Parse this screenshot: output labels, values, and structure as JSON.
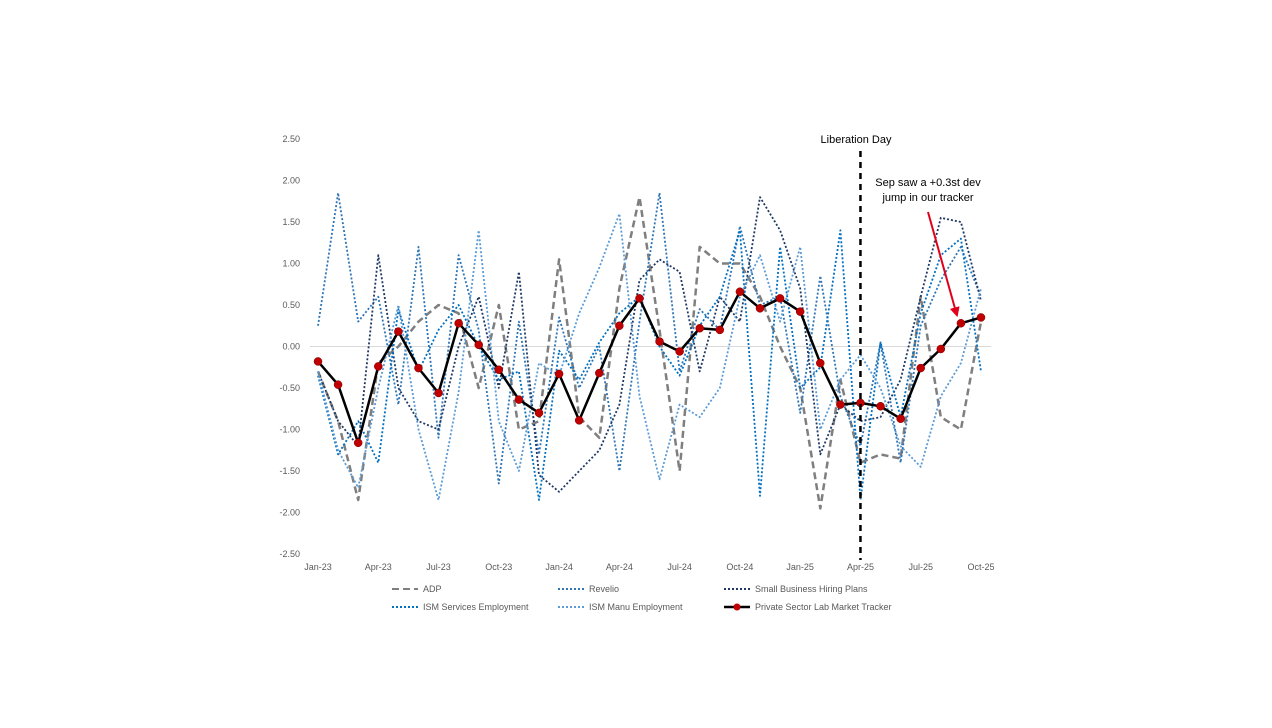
{
  "chart_data": {
    "type": "line",
    "title": "",
    "xlabel": "",
    "ylabel": "",
    "ylim": [
      -2.5,
      2.5
    ],
    "yticks": [
      2.5,
      2.0,
      1.5,
      1.0,
      0.5,
      0.0,
      -0.5,
      -1.0,
      -1.5,
      -2.0,
      -2.5
    ],
    "ytick_labels": [
      "2.50",
      "2.00",
      "1.50",
      "1.00",
      "0.50",
      "0.00",
      "-0.50",
      "-1.00",
      "-1.50",
      "-2.00",
      "-2.50"
    ],
    "x": [
      "Jan-23",
      "Feb-23",
      "Mar-23",
      "Apr-23",
      "May-23",
      "Jun-23",
      "Jul-23",
      "Aug-23",
      "Sep-23",
      "Oct-23",
      "Nov-23",
      "Dec-23",
      "Jan-24",
      "Feb-24",
      "Mar-24",
      "Apr-24",
      "May-24",
      "Jun-24",
      "Jul-24",
      "Aug-24",
      "Sep-24",
      "Oct-24",
      "Nov-24",
      "Dec-24",
      "Jan-25",
      "Feb-25",
      "Mar-25",
      "Apr-25",
      "May-25",
      "Jun-25",
      "Jul-25",
      "Aug-25",
      "Sep-25",
      "Oct-25"
    ],
    "xtick_labels": [
      "Jan-23",
      "Apr-23",
      "Jul-23",
      "Oct-23",
      "Jan-24",
      "Apr-24",
      "Jul-24",
      "Oct-24",
      "Jan-25",
      "Apr-25",
      "Jul-25",
      "Oct-25"
    ],
    "xtick_indices": [
      0,
      3,
      6,
      9,
      12,
      15,
      18,
      21,
      24,
      27,
      30,
      33
    ],
    "series": [
      {
        "name": "ADP",
        "color": "#7f7f7f",
        "style": "dashed",
        "values": [
          -0.3,
          -0.9,
          -1.85,
          -0.2,
          0.0,
          0.3,
          0.5,
          0.4,
          -0.5,
          0.5,
          -1.0,
          -0.9,
          1.05,
          -0.85,
          -1.1,
          0.7,
          1.8,
          0.2,
          -1.5,
          1.2,
          1.0,
          1.0,
          0.6,
          0.0,
          -0.5,
          -1.95,
          -0.4,
          -1.4,
          -1.3,
          -1.35,
          0.6,
          -0.85,
          -1.0,
          0.3
        ]
      },
      {
        "name": "Revelio",
        "color": "#2e75b6",
        "style": "dotted",
        "values": [
          0.25,
          1.85,
          0.3,
          0.6,
          -0.7,
          1.2,
          -1.1,
          1.1,
          0.2,
          -1.65,
          0.3,
          -1.3,
          0.35,
          -0.5,
          0.0,
          -1.5,
          0.3,
          1.85,
          -0.3,
          0.45,
          0.2,
          1.45,
          0.5,
          0.6,
          -0.8,
          0.85,
          -0.6,
          -1.2,
          0.05,
          -1.4,
          0.25,
          0.8,
          1.2,
          0.6
        ]
      },
      {
        "name": "Small Business Hiring Plans",
        "color": "#1f3864",
        "style": "dotted",
        "values": [
          -0.3,
          -0.9,
          -1.2,
          1.1,
          -0.5,
          -0.9,
          -1.0,
          0.0,
          0.6,
          -0.5,
          0.9,
          -1.55,
          -1.75,
          -1.5,
          -1.25,
          -0.7,
          0.8,
          1.05,
          0.9,
          -0.3,
          0.6,
          0.3,
          1.8,
          1.4,
          0.7,
          -1.3,
          -0.7,
          -0.9,
          -0.85,
          -0.4,
          0.6,
          1.55,
          1.5,
          0.55
        ]
      },
      {
        "name": "ISM Services Employment",
        "color": "#0070c0",
        "style": "dotted",
        "values": [
          -0.35,
          -1.3,
          -0.9,
          -1.4,
          0.45,
          -0.3,
          0.2,
          0.5,
          0.0,
          -0.4,
          -0.3,
          -1.85,
          -0.05,
          -0.4,
          0.05,
          0.4,
          0.6,
          0.0,
          -0.35,
          0.25,
          0.6,
          1.4,
          -1.8,
          1.2,
          -0.5,
          -0.25,
          1.4,
          -1.85,
          0.05,
          -0.85,
          0.4,
          1.1,
          1.3,
          -0.3
        ]
      },
      {
        "name": "ISM Manu Employment",
        "color": "#5b9bd5",
        "style": "dotted",
        "values": [
          -0.3,
          -1.25,
          -1.7,
          -0.5,
          0.5,
          -1.0,
          -1.85,
          -0.55,
          1.4,
          -0.9,
          -1.5,
          -0.2,
          -0.35,
          0.4,
          0.95,
          1.6,
          -0.6,
          -1.6,
          -0.7,
          -0.85,
          -0.5,
          0.6,
          1.1,
          0.3,
          1.2,
          -1.0,
          -0.4,
          -0.1,
          -0.5,
          -1.2,
          -1.45,
          -0.6,
          -0.2,
          0.7
        ]
      },
      {
        "name": "Private Sector Lab Market Tracker",
        "color": "#000000",
        "marker_color": "#c00000",
        "style": "solid",
        "values": [
          -0.18,
          -0.46,
          -1.16,
          -0.24,
          0.18,
          -0.26,
          -0.56,
          0.28,
          0.02,
          -0.28,
          -0.64,
          -0.8,
          -0.33,
          -0.89,
          -0.32,
          0.25,
          0.58,
          0.06,
          -0.06,
          0.22,
          0.2,
          0.66,
          0.46,
          0.58,
          0.42,
          -0.2,
          -0.7,
          -0.68,
          -0.72,
          -0.87,
          -0.26,
          -0.03,
          0.28,
          0.35
        ]
      }
    ],
    "vline": {
      "at": "Apr-25",
      "index": 27,
      "label": "Liberation Day"
    },
    "annotation": {
      "line1": "Sep saw a +0.3st dev",
      "line2": "jump in our tracker",
      "target": "Sep-25"
    },
    "legend": {
      "position": "bottom",
      "columns": 3
    }
  }
}
